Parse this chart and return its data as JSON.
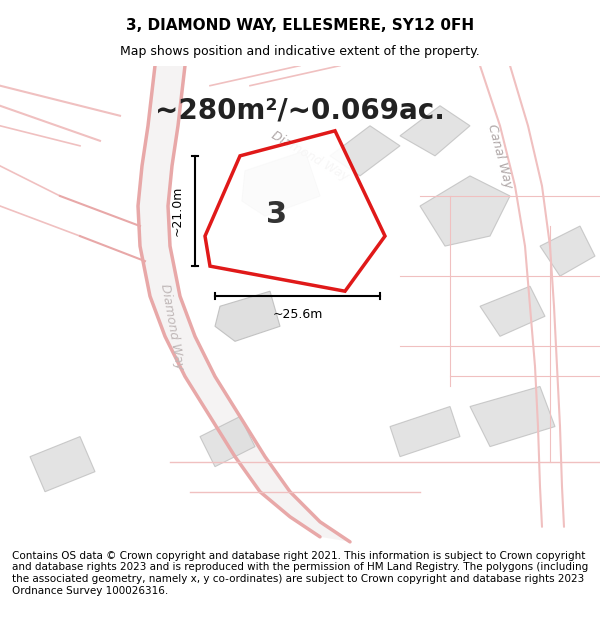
{
  "title": "3, DIAMOND WAY, ELLESMERE, SY12 0FH",
  "subtitle": "Map shows position and indicative extent of the property.",
  "area_text": "~280m²/~0.069ac.",
  "width_label": "~25.6m",
  "height_label": "~21.0m",
  "plot_number": "3",
  "footer": "Contains OS data © Crown copyright and database right 2021. This information is subject to Crown copyright and database rights 2023 and is reproduced with the permission of HM Land Registry. The polygons (including the associated geometry, namely x, y co-ordinates) are subject to Crown copyright and database rights 2023 Ordnance Survey 100026316.",
  "bg_color": "#f5f5f5",
  "map_bg": "#f0eeee",
  "road_color_main": "#e8a8a8",
  "road_color_light": "#f0c0c0",
  "plot_outline_color": "#dd0000",
  "plot_fill_color": "#ffffff",
  "building_fill": "#d8d8d8",
  "dimension_line_color": "#000000",
  "text_color": "#000000",
  "road_label_color": "#aaaaaa",
  "title_fontsize": 11,
  "subtitle_fontsize": 9,
  "area_fontsize": 20,
  "plot_num_fontsize": 22,
  "footer_fontsize": 7.5,
  "dim_fontsize": 9,
  "road_label_fontsize": 10
}
